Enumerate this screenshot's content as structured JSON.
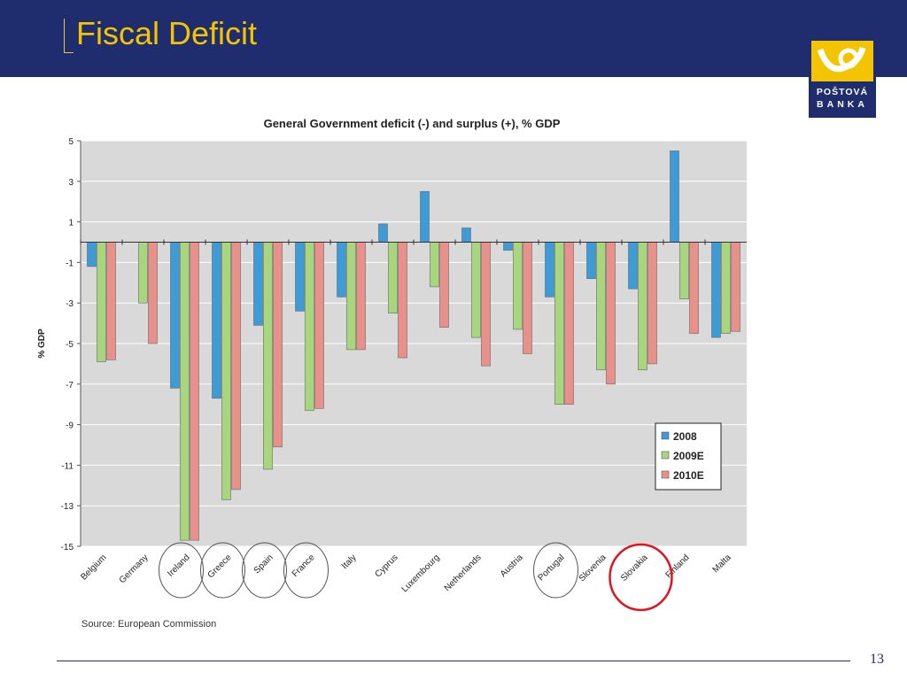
{
  "slide": {
    "title": "Fiscal Deficit",
    "page_number": "13",
    "logo": {
      "line1": "POŠTOVÁ",
      "line2": "BANKA"
    }
  },
  "chart_data": {
    "type": "bar",
    "title": "General Government deficit (-) and surplus (+), % GDP",
    "ylabel": "% GDP",
    "xlabel": "",
    "ylim": [
      -15,
      5
    ],
    "yticks": [
      5,
      3,
      1,
      -1,
      -3,
      -5,
      -7,
      -9,
      -11,
      -13,
      -15
    ],
    "grid": true,
    "legend_position": "bottom-right",
    "categories": [
      "Belgium",
      "Germany",
      "Ireland",
      "Greece",
      "Spain",
      "France",
      "Italy",
      "Cyprus",
      "Luxembourg",
      "Netherlands",
      "Austria",
      "Portugal",
      "Slovenia",
      "Slovakia",
      "Finland",
      "Malta"
    ],
    "series": [
      {
        "name": "2008",
        "color": "#3d9bd8",
        "values": [
          -1.2,
          0.0,
          -7.2,
          -7.7,
          -4.1,
          -3.4,
          -2.7,
          0.9,
          2.5,
          0.7,
          -0.4,
          -2.7,
          -1.8,
          -2.3,
          4.5,
          -4.7
        ]
      },
      {
        "name": "2009E",
        "color": "#a8d67e",
        "values": [
          -5.9,
          -3.0,
          -14.7,
          -12.7,
          -11.2,
          -8.3,
          -5.3,
          -3.5,
          -2.2,
          -4.7,
          -4.3,
          -8.0,
          -6.3,
          -6.3,
          -2.8,
          -4.5
        ]
      },
      {
        "name": "2010E",
        "color": "#e8918a",
        "values": [
          -5.8,
          -5.0,
          -14.7,
          -12.2,
          -10.1,
          -8.2,
          -5.3,
          -5.7,
          -4.2,
          -6.1,
          -5.5,
          -8.0,
          -7.0,
          -6.0,
          -4.5,
          -4.4
        ]
      }
    ],
    "annotations": {
      "source": "Source: European Commission",
      "circled_categories": [
        "Ireland",
        "Greece",
        "Spain",
        "France",
        "Portugal"
      ],
      "highlighted_category": "Slovakia",
      "circle_color": "#555555",
      "highlight_color": "#e0141e"
    },
    "plot_background": "#d9d9d9"
  }
}
